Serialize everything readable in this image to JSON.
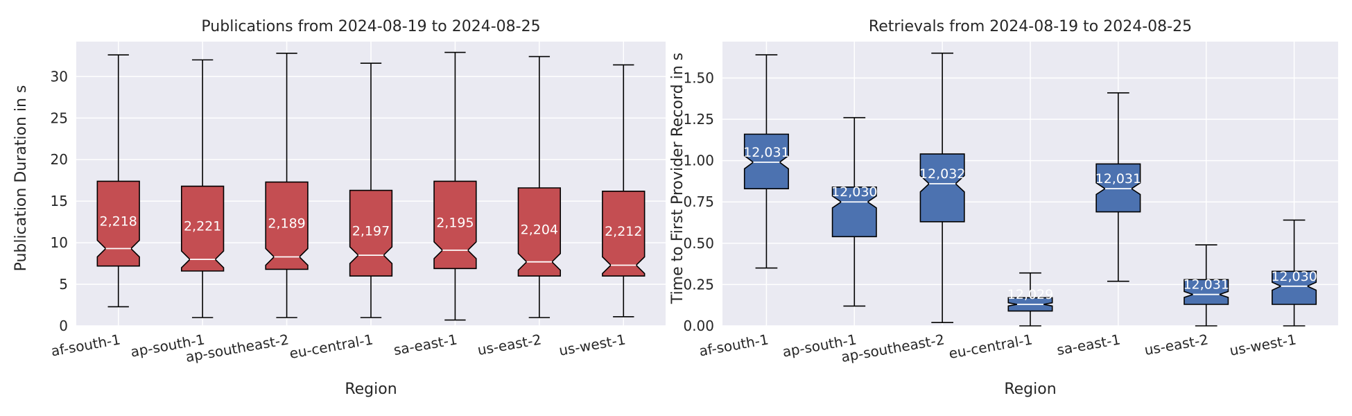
{
  "chart_data": [
    {
      "type": "box",
      "title": "Publications from 2024-08-19 to 2024-08-25",
      "xlabel": "Region",
      "ylabel": "Publication Duration in s",
      "ylim": [
        0,
        34.2
      ],
      "yticks": [
        0,
        5,
        10,
        15,
        20,
        25,
        30
      ],
      "ytick_labels": [
        "0",
        "5",
        "10",
        "15",
        "20",
        "25",
        "30"
      ],
      "notched": true,
      "color": "#c44e52",
      "categories": [
        "af-south-1",
        "ap-south-1",
        "ap-southeast-2",
        "eu-central-1",
        "sa-east-1",
        "us-east-2",
        "us-west-1"
      ],
      "boxes": [
        {
          "whisker_low": 2.3,
          "q1": 7.2,
          "median": 9.3,
          "q3": 17.4,
          "whisker_high": 32.6,
          "count": "2,218"
        },
        {
          "whisker_low": 1.0,
          "q1": 6.6,
          "median": 8.0,
          "q3": 16.8,
          "whisker_high": 32.0,
          "count": "2,221"
        },
        {
          "whisker_low": 1.0,
          "q1": 6.8,
          "median": 8.3,
          "q3": 17.3,
          "whisker_high": 32.8,
          "count": "2,189"
        },
        {
          "whisker_low": 1.0,
          "q1": 6.0,
          "median": 8.5,
          "q3": 16.3,
          "whisker_high": 31.6,
          "count": "2,197"
        },
        {
          "whisker_low": 0.7,
          "q1": 6.9,
          "median": 9.1,
          "q3": 17.4,
          "whisker_high": 32.9,
          "count": "2,195"
        },
        {
          "whisker_low": 1.0,
          "q1": 6.0,
          "median": 7.7,
          "q3": 16.6,
          "whisker_high": 32.4,
          "count": "2,204"
        },
        {
          "whisker_low": 1.1,
          "q1": 6.0,
          "median": 7.3,
          "q3": 16.2,
          "whisker_high": 31.4,
          "count": "2,212"
        }
      ]
    },
    {
      "type": "box",
      "title": "Retrievals from 2024-08-19 to 2024-08-25",
      "xlabel": "Region",
      "ylabel": "Time to First Provider Record in s",
      "ylim": [
        0,
        1.72
      ],
      "yticks": [
        0,
        0.25,
        0.5,
        0.75,
        1.0,
        1.25,
        1.5
      ],
      "ytick_labels": [
        "0.00",
        "0.25",
        "0.50",
        "0.75",
        "1.00",
        "1.25",
        "1.50"
      ],
      "notched": true,
      "color": "#4c72b0",
      "categories": [
        "af-south-1",
        "ap-south-1",
        "ap-southeast-2",
        "eu-central-1",
        "sa-east-1",
        "us-east-2",
        "us-west-1"
      ],
      "boxes": [
        {
          "whisker_low": 0.35,
          "q1": 0.83,
          "median": 0.99,
          "q3": 1.16,
          "whisker_high": 1.64,
          "count": "12,031"
        },
        {
          "whisker_low": 0.12,
          "q1": 0.54,
          "median": 0.75,
          "q3": 0.84,
          "whisker_high": 1.26,
          "count": "12,030"
        },
        {
          "whisker_low": 0.02,
          "q1": 0.63,
          "median": 0.86,
          "q3": 1.04,
          "whisker_high": 1.65,
          "count": "12,032"
        },
        {
          "whisker_low": 0.0,
          "q1": 0.09,
          "median": 0.13,
          "q3": 0.17,
          "whisker_high": 0.32,
          "count": "12,029"
        },
        {
          "whisker_low": 0.27,
          "q1": 0.69,
          "median": 0.83,
          "q3": 0.98,
          "whisker_high": 1.41,
          "count": "12,031"
        },
        {
          "whisker_low": 0.0,
          "q1": 0.13,
          "median": 0.19,
          "q3": 0.28,
          "whisker_high": 0.49,
          "count": "12,031"
        },
        {
          "whisker_low": 0.0,
          "q1": 0.13,
          "median": 0.24,
          "q3": 0.33,
          "whisker_high": 0.64,
          "count": "12,030"
        }
      ]
    }
  ]
}
